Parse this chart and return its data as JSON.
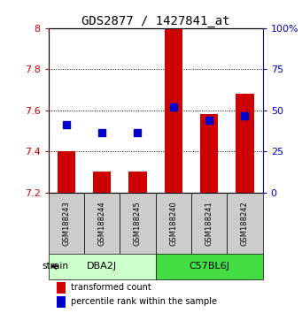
{
  "title": "GDS2877 / 1427841_at",
  "samples": [
    "GSM188243",
    "GSM188244",
    "GSM188245",
    "GSM188240",
    "GSM188241",
    "GSM188242"
  ],
  "red_bar_tops": [
    7.4,
    7.3,
    7.3,
    8.0,
    7.58,
    7.68
  ],
  "red_bar_base": 7.2,
  "blue_dot_y": [
    7.53,
    7.49,
    7.49,
    7.615,
    7.55,
    7.575
  ],
  "ylim": [
    7.2,
    8.0
  ],
  "yticks": [
    7.2,
    7.4,
    7.6,
    7.8,
    8.0
  ],
  "ytick_labels": [
    "7.2",
    "7.4",
    "7.6",
    "7.8",
    "8"
  ],
  "right_yticks": [
    0,
    25,
    50,
    75,
    100
  ],
  "right_ytick_labels": [
    "0",
    "25",
    "50",
    "75",
    "100%"
  ],
  "bar_color": "#cc0000",
  "dot_color": "#0000cc",
  "group0_bg": "#ccffcc",
  "group1_bg": "#44dd44",
  "sample_bg": "#cccccc",
  "bar_width": 0.5,
  "dot_size": 28,
  "legend_red": "transformed count",
  "legend_blue": "percentile rank within the sample",
  "xlabel_color": "#cc0000",
  "right_axis_color": "#0000cc",
  "title_fontsize": 10
}
